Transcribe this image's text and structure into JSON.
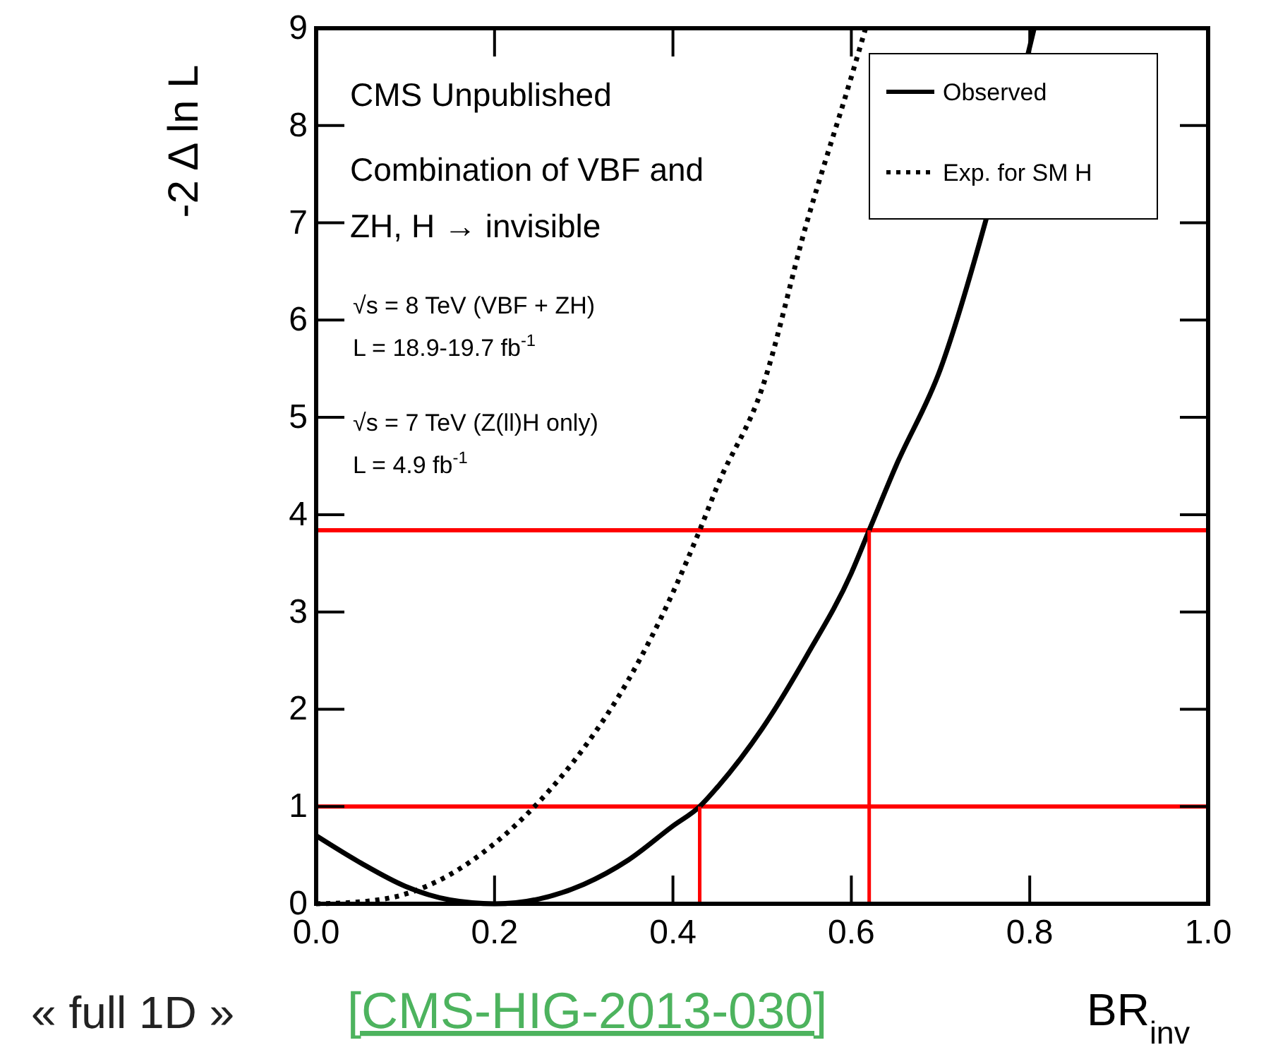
{
  "chart_data": {
    "type": "line",
    "xlabel": "BR$_{inv}$",
    "ylabel": "-2 Δ ln L",
    "annotations": [
      "CMS Unpublished",
      "Combination of VBF and",
      "ZH, H → invisible",
      "√s = 8 TeV (VBF + ZH)",
      "L = 18.9-19.7 fb$^{-1}$",
      "√s = 7 TeV (Z(ll)H only)",
      "L = 4.9 fb$^{-1}$",
      "« full 1D »",
      "[CMS-HIG-2013-030]"
    ],
    "xlim": [
      0,
      1
    ],
    "ylim": [
      0,
      9
    ],
    "xticks": [
      {
        "value": 0,
        "label": "0.0"
      },
      0.2,
      0.4,
      0.6,
      0.8,
      {
        "value": 1,
        "label": "1.0"
      }
    ],
    "yticks": [
      0,
      1,
      2,
      3,
      4,
      5,
      6,
      7,
      8,
      9
    ],
    "grid": false,
    "legend": "top right",
    "ref_lines": [
      {
        "axis": "y",
        "value": 1,
        "color": "#ff0000"
      },
      {
        "axis": "y",
        "value": 3.84,
        "color": "#ff0000"
      }
    ],
    "series": [
      {
        "name": "Observed",
        "color": "#000000",
        "line_style": "solid",
        "x": [
          0,
          0.05,
          0.1,
          0.15,
          0.2,
          0.25,
          0.3,
          0.35,
          0.4,
          0.43,
          0.45,
          0.5,
          0.55,
          0.6,
          0.62,
          0.65,
          0.7,
          0.75,
          0.805
        ],
        "values": [
          0.7,
          0.42,
          0.18,
          0.04,
          0,
          0.05,
          0.2,
          0.45,
          0.8,
          1,
          1.2,
          1.8,
          2.55,
          3.4,
          3.84,
          4.5,
          5.5,
          7,
          9
        ]
      },
      {
        "name": "Exp. for SM H",
        "color": "#000000",
        "line_style": "dotted",
        "x": [
          0,
          0.05,
          0.1,
          0.15,
          0.2,
          0.25,
          0.3,
          0.35,
          0.4,
          0.43,
          0.45,
          0.5,
          0.55,
          0.6,
          0.616
        ],
        "values": [
          0,
          0.02,
          0.1,
          0.3,
          0.62,
          1.05,
          1.6,
          2.3,
          3.2,
          3.84,
          4.3,
          5.3,
          7,
          8.5,
          9
        ]
      },
      {
        "color": "#ff0000",
        "line_style": "solid",
        "x": [
          0.43,
          0.43
        ],
        "values": [
          0,
          1
        ]
      },
      {
        "color": "#ff0000",
        "line_style": "solid",
        "x": [
          0.62,
          0.62
        ],
        "values": [
          0,
          3.84
        ]
      }
    ]
  }
}
